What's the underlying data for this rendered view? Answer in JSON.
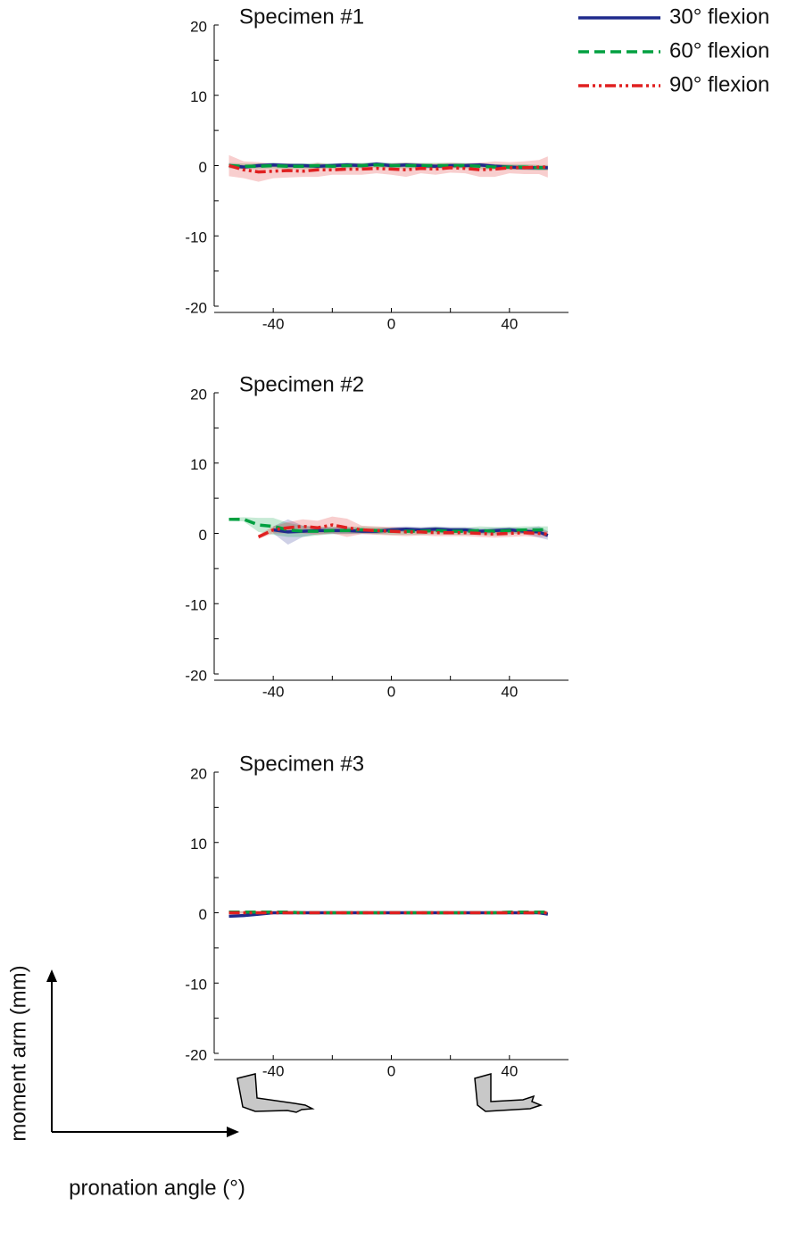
{
  "chart_data": [
    {
      "type": "line",
      "title": "Specimen #1",
      "x": [
        -55,
        -50,
        -45,
        -40,
        -35,
        -30,
        -25,
        -20,
        -15,
        -10,
        -5,
        0,
        5,
        10,
        15,
        20,
        25,
        30,
        35,
        40,
        45,
        50,
        53
      ],
      "xlim": [
        -60,
        60
      ],
      "xticks": [
        -40,
        0,
        40
      ],
      "xminorticks": [
        -20,
        20
      ],
      "ylim": [
        -20,
        20
      ],
      "yticks": [
        -20,
        -10,
        0,
        10,
        20
      ],
      "yminorticks": [
        -15,
        -5,
        5,
        15
      ],
      "series": [
        {
          "name": "30° flexion",
          "color": "#1f2a8c",
          "dash": "solid",
          "values": [
            0,
            -0.2,
            0,
            0.1,
            0,
            0,
            -0.1,
            0,
            0.1,
            0,
            0.2,
            0,
            0.1,
            0,
            -0.1,
            0,
            0,
            0.1,
            -0.1,
            -0.2,
            -0.3,
            -0.3,
            -0.3
          ],
          "spread": [
            0.3,
            0.3,
            0.3,
            0.3,
            0.3,
            0.3,
            0.3,
            0.3,
            0.3,
            0.3,
            0.3,
            0.3,
            0.3,
            0.3,
            0.3,
            0.3,
            0.3,
            0.3,
            0.3,
            0.3,
            0.3,
            0.3,
            0.3
          ]
        },
        {
          "name": "60° flexion",
          "color": "#00a040",
          "dash": "dashed",
          "values": [
            0,
            -0.1,
            -0.1,
            0,
            -0.1,
            -0.1,
            0,
            -0.1,
            0,
            0,
            0.1,
            0,
            0,
            0,
            0,
            0,
            0,
            -0.1,
            -0.2,
            -0.2,
            -0.2,
            -0.3,
            -0.3
          ],
          "spread": [
            0.4,
            0.4,
            0.4,
            0.4,
            0.4,
            0.4,
            0.4,
            0.4,
            0.4,
            0.4,
            0.4,
            0.4,
            0.4,
            0.4,
            0.4,
            0.4,
            0.4,
            0.4,
            0.4,
            0.4,
            0.4,
            0.4,
            0.4
          ]
        },
        {
          "name": "90° flexion",
          "color": "#e02020",
          "dash": "dashdot",
          "values": [
            0,
            -0.6,
            -0.9,
            -0.8,
            -0.7,
            -0.8,
            -0.6,
            -0.6,
            -0.5,
            -0.5,
            -0.4,
            -0.5,
            -0.6,
            -0.4,
            -0.5,
            -0.3,
            -0.4,
            -0.6,
            -0.5,
            -0.3,
            -0.3,
            -0.2,
            -0.2
          ],
          "spread": [
            1.5,
            1.2,
            1.4,
            1,
            1,
            0.8,
            1,
            0.7,
            0.8,
            0.8,
            0.7,
            0.8,
            1,
            0.7,
            0.8,
            0.7,
            0.7,
            1,
            1.1,
            0.8,
            0.9,
            1,
            1.5
          ]
        }
      ]
    },
    {
      "type": "line",
      "title": "Specimen #2",
      "x": [
        -55,
        -50,
        -45,
        -40,
        -35,
        -30,
        -25,
        -20,
        -15,
        -10,
        -5,
        0,
        5,
        10,
        15,
        20,
        25,
        30,
        35,
        40,
        45,
        50,
        53
      ],
      "xlim": [
        -60,
        60
      ],
      "xticks": [
        -40,
        0,
        40
      ],
      "xminorticks": [
        -20,
        20
      ],
      "ylim": [
        -20,
        20
      ],
      "yticks": [
        -20,
        -10,
        0,
        10,
        20
      ],
      "yminorticks": [
        -15,
        -5,
        5,
        15
      ],
      "series": [
        {
          "name": "30° flexion",
          "color": "#1f2a8c",
          "dash": "solid",
          "values": [
            null,
            null,
            null,
            0.5,
            0.2,
            0.3,
            0.4,
            0.4,
            0.4,
            0.3,
            0.3,
            0.5,
            0.6,
            0.5,
            0.6,
            0.5,
            0.5,
            0.3,
            0.4,
            0.5,
            0.3,
            0.2,
            -0.3
          ],
          "spread": [
            null,
            null,
            null,
            0.5,
            1.8,
            0.8,
            0.5,
            0.5,
            0.5,
            0.4,
            0.4,
            0.4,
            0.4,
            0.4,
            0.4,
            0.4,
            0.4,
            0.4,
            0.4,
            0.4,
            0.4,
            0.8,
            0.6
          ]
        },
        {
          "name": "60° flexion",
          "color": "#00a040",
          "dash": "dashed",
          "values": [
            2,
            2,
            1.2,
            1,
            0.5,
            0.3,
            0.3,
            0.4,
            0.4,
            0.5,
            0.4,
            0.3,
            0.3,
            0.3,
            0.4,
            0.3,
            0.3,
            0.4,
            0.3,
            0.4,
            0.5,
            0.5,
            0.6
          ],
          "spread": [
            0.2,
            0.3,
            1,
            1.2,
            1,
            0.8,
            0.6,
            0.5,
            0.5,
            0.5,
            0.5,
            0.5,
            0.5,
            0.5,
            0.5,
            0.5,
            0.5,
            0.6,
            0.6,
            0.5,
            0.5,
            0.5,
            0.4
          ]
        },
        {
          "name": "90° flexion",
          "color": "#e02020",
          "dash": "dashdot",
          "values": [
            null,
            null,
            -0.5,
            0.5,
            0.8,
            1,
            0.8,
            1.2,
            0.8,
            0.5,
            0.4,
            0.3,
            0.2,
            0.2,
            0.1,
            0.1,
            0.1,
            0,
            -0.1,
            0,
            0.1,
            0,
            -0.1
          ],
          "spread": [
            null,
            null,
            0.3,
            0.5,
            0.8,
            1,
            1,
            1.2,
            1.3,
            0.6,
            0.6,
            0.6,
            0.6,
            0.5,
            0.5,
            0.5,
            0.5,
            0.5,
            0.5,
            0.5,
            0.5,
            0.5,
            0.4
          ]
        }
      ]
    },
    {
      "type": "line",
      "title": "Specimen #3",
      "x": [
        -55,
        -50,
        -45,
        -40,
        -35,
        -30,
        -25,
        -20,
        -15,
        -10,
        -5,
        0,
        5,
        10,
        15,
        20,
        25,
        30,
        35,
        40,
        45,
        50,
        53
      ],
      "xlim": [
        -60,
        60
      ],
      "xticks": [
        -40,
        0,
        40
      ],
      "xminorticks": [
        -20,
        20
      ],
      "ylim": [
        -20,
        20
      ],
      "yticks": [
        -20,
        -10,
        0,
        10,
        20
      ],
      "yminorticks": [
        -15,
        -5,
        5,
        15
      ],
      "xlabel": "pronation angle (°)",
      "ylabel": "moment arm (mm)",
      "series": [
        {
          "name": "30° flexion",
          "color": "#1f2a8c",
          "dash": "solid",
          "values": [
            -0.5,
            -0.4,
            -0.2,
            0,
            0,
            0,
            0,
            0,
            0,
            0,
            0,
            0,
            0,
            0,
            0,
            0,
            0,
            0,
            0,
            0,
            0,
            0,
            -0.2
          ],
          "spread": [
            0.2,
            0.2,
            0.2,
            0.1,
            0.1,
            0.1,
            0.1,
            0.1,
            0.1,
            0.1,
            0.1,
            0.1,
            0.1,
            0.1,
            0.1,
            0.1,
            0.1,
            0.1,
            0.1,
            0.1,
            0.1,
            0.1,
            0.2
          ]
        },
        {
          "name": "60° flexion",
          "color": "#00a040",
          "dash": "dashed",
          "values": [
            0.1,
            0.1,
            0.1,
            0.1,
            0.1,
            0,
            0,
            0,
            0,
            0,
            0,
            0,
            0,
            0,
            0,
            0,
            0,
            0,
            0,
            0.1,
            0.1,
            0.1,
            0.1
          ],
          "spread": [
            0.1,
            0.1,
            0.1,
            0.1,
            0.1,
            0.1,
            0.1,
            0.1,
            0.1,
            0.1,
            0.1,
            0.1,
            0.1,
            0.1,
            0.1,
            0.1,
            0.1,
            0.1,
            0.1,
            0.1,
            0.1,
            0.1,
            0.1
          ]
        },
        {
          "name": "90° flexion",
          "color": "#e02020",
          "dash": "dashdot",
          "values": [
            0,
            0,
            0,
            0,
            0,
            0,
            0,
            0,
            0,
            0,
            0,
            0,
            0,
            0,
            0,
            0,
            0,
            0,
            0,
            0,
            0,
            0,
            0
          ],
          "spread": [
            0.2,
            0.2,
            0.2,
            0.2,
            0.2,
            0.2,
            0.2,
            0.2,
            0.2,
            0.2,
            0.2,
            0.2,
            0.2,
            0.2,
            0.2,
            0.2,
            0.2,
            0.2,
            0.2,
            0.2,
            0.2,
            0.2,
            0.2
          ]
        }
      ]
    }
  ]
}
